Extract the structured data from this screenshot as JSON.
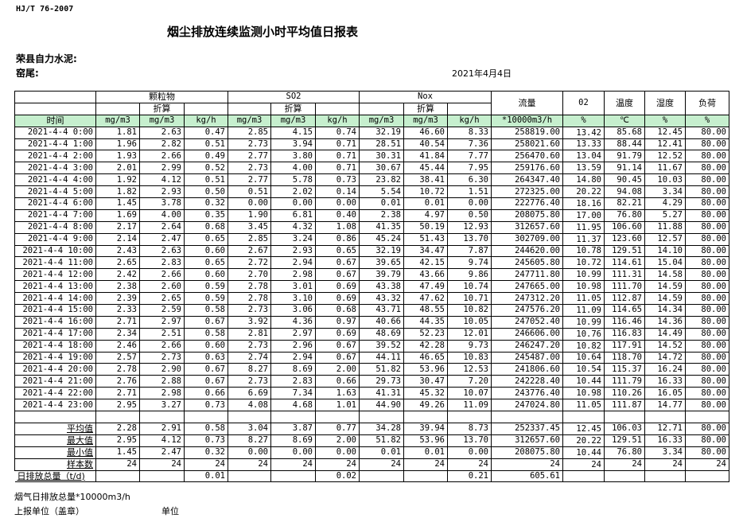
{
  "header": {
    "standard": "HJ/T 76-2007",
    "title": "烟尘排放连续监测小时平均值日报表",
    "company": "荣县自力水泥:",
    "kiln": "窑尾:",
    "date": "2021年4月4日"
  },
  "table": {
    "groups": {
      "particulate": "颗粒物",
      "so2": "SO2",
      "nox": "Nox",
      "flow": "流量",
      "o2": "02",
      "temp": "温度",
      "humidity": "湿度",
      "load": "负荷"
    },
    "converted": "折算",
    "time_header": "时间",
    "units": [
      "mg/m3",
      "mg/m3",
      "kg/h",
      "mg/m3",
      "mg/m3",
      "kg/h",
      "mg/m3",
      "mg/m3",
      "kg/h",
      "*10000m3/h",
      "%",
      "℃",
      "%",
      "%"
    ],
    "rows": [
      [
        "2021-4-4 0:00",
        "1.81",
        "2.63",
        "0.47",
        "2.85",
        "4.15",
        "0.74",
        "32.19",
        "46.60",
        "8.33",
        "258819.00",
        "13.42",
        "85.68",
        "12.45",
        "80.00"
      ],
      [
        "2021-4-4 1:00",
        "1.96",
        "2.82",
        "0.51",
        "2.73",
        "3.94",
        "0.71",
        "28.51",
        "40.54",
        "7.36",
        "258021.60",
        "13.33",
        "88.44",
        "12.41",
        "80.00"
      ],
      [
        "2021-4-4 2:00",
        "1.93",
        "2.66",
        "0.49",
        "2.77",
        "3.80",
        "0.71",
        "30.31",
        "41.84",
        "7.77",
        "256470.60",
        "13.04",
        "91.79",
        "12.52",
        "80.00"
      ],
      [
        "2021-4-4 3:00",
        "2.01",
        "2.99",
        "0.52",
        "2.73",
        "4.00",
        "0.71",
        "30.67",
        "45.44",
        "7.95",
        "259176.60",
        "13.59",
        "91.14",
        "11.67",
        "80.00"
      ],
      [
        "2021-4-4 4:00",
        "1.92",
        "4.12",
        "0.51",
        "2.77",
        "5.78",
        "0.73",
        "23.82",
        "38.41",
        "6.30",
        "264347.40",
        "14.80",
        "90.45",
        "10.03",
        "80.00"
      ],
      [
        "2021-4-4 5:00",
        "1.82",
        "2.93",
        "0.50",
        "0.51",
        "2.02",
        "0.14",
        "5.54",
        "10.72",
        "1.51",
        "272325.00",
        "20.22",
        "94.08",
        "3.34",
        "80.00"
      ],
      [
        "2021-4-4 6:00",
        "1.45",
        "3.78",
        "0.32",
        "0.00",
        "0.00",
        "0.00",
        "0.01",
        "0.01",
        "0.00",
        "222776.40",
        "18.16",
        "82.21",
        "4.29",
        "80.00"
      ],
      [
        "2021-4-4 7:00",
        "1.69",
        "4.00",
        "0.35",
        "1.90",
        "6.81",
        "0.40",
        "2.38",
        "4.97",
        "0.50",
        "208075.80",
        "17.00",
        "76.80",
        "5.27",
        "80.00"
      ],
      [
        "2021-4-4 8:00",
        "2.17",
        "2.64",
        "0.68",
        "3.45",
        "4.32",
        "1.08",
        "41.35",
        "50.19",
        "12.93",
        "312657.60",
        "11.95",
        "106.60",
        "11.88",
        "80.00"
      ],
      [
        "2021-4-4 9:00",
        "2.14",
        "2.47",
        "0.65",
        "2.85",
        "3.24",
        "0.86",
        "45.24",
        "51.43",
        "13.70",
        "302709.00",
        "11.37",
        "123.60",
        "12.57",
        "80.00"
      ],
      [
        "2021-4-4 10:00",
        "2.43",
        "2.63",
        "0.60",
        "2.67",
        "2.93",
        "0.65",
        "32.19",
        "34.47",
        "7.87",
        "244620.00",
        "10.78",
        "129.51",
        "14.10",
        "80.00"
      ],
      [
        "2021-4-4 11:00",
        "2.65",
        "2.83",
        "0.65",
        "2.72",
        "2.94",
        "0.67",
        "39.65",
        "42.15",
        "9.74",
        "245605.80",
        "10.72",
        "114.61",
        "15.04",
        "80.00"
      ],
      [
        "2021-4-4 12:00",
        "2.42",
        "2.66",
        "0.60",
        "2.70",
        "2.98",
        "0.67",
        "39.79",
        "43.66",
        "9.86",
        "247711.80",
        "10.99",
        "111.31",
        "14.58",
        "80.00"
      ],
      [
        "2021-4-4 13:00",
        "2.38",
        "2.60",
        "0.59",
        "2.78",
        "3.01",
        "0.69",
        "43.38",
        "47.49",
        "10.74",
        "247665.00",
        "10.98",
        "111.70",
        "14.59",
        "80.00"
      ],
      [
        "2021-4-4 14:00",
        "2.39",
        "2.65",
        "0.59",
        "2.78",
        "3.10",
        "0.69",
        "43.32",
        "47.62",
        "10.71",
        "247312.20",
        "11.05",
        "112.87",
        "14.59",
        "80.00"
      ],
      [
        "2021-4-4 15:00",
        "2.33",
        "2.59",
        "0.58",
        "2.73",
        "3.06",
        "0.68",
        "43.71",
        "48.55",
        "10.82",
        "247576.20",
        "11.09",
        "114.65",
        "14.34",
        "80.00"
      ],
      [
        "2021-4-4 16:00",
        "2.71",
        "2.97",
        "0.67",
        "3.92",
        "4.36",
        "0.97",
        "40.66",
        "44.35",
        "10.05",
        "247052.40",
        "10.99",
        "116.46",
        "14.36",
        "80.00"
      ],
      [
        "2021-4-4 17:00",
        "2.34",
        "2.51",
        "0.58",
        "2.81",
        "2.97",
        "0.69",
        "48.69",
        "52.23",
        "12.01",
        "246606.00",
        "10.76",
        "116.83",
        "14.49",
        "80.00"
      ],
      [
        "2021-4-4 18:00",
        "2.46",
        "2.66",
        "0.60",
        "2.73",
        "2.96",
        "0.67",
        "39.52",
        "42.28",
        "9.73",
        "246247.20",
        "10.82",
        "117.91",
        "14.52",
        "80.00"
      ],
      [
        "2021-4-4 19:00",
        "2.57",
        "2.73",
        "0.63",
        "2.74",
        "2.94",
        "0.67",
        "44.11",
        "46.65",
        "10.83",
        "245487.00",
        "10.64",
        "118.70",
        "14.72",
        "80.00"
      ],
      [
        "2021-4-4 20:00",
        "2.78",
        "2.90",
        "0.67",
        "8.27",
        "8.69",
        "2.00",
        "51.82",
        "53.96",
        "12.53",
        "241806.60",
        "10.54",
        "115.37",
        "16.24",
        "80.00"
      ],
      [
        "2021-4-4 21:00",
        "2.76",
        "2.88",
        "0.67",
        "2.73",
        "2.83",
        "0.66",
        "29.73",
        "30.47",
        "7.20",
        "242228.40",
        "10.44",
        "111.79",
        "16.33",
        "80.00"
      ],
      [
        "2021-4-4 22:00",
        "2.71",
        "2.98",
        "0.66",
        "6.69",
        "7.34",
        "1.63",
        "41.31",
        "45.32",
        "10.07",
        "243776.40",
        "10.98",
        "110.26",
        "16.05",
        "80.00"
      ],
      [
        "2021-4-4 23:00",
        "2.95",
        "3.27",
        "0.73",
        "4.08",
        "4.68",
        "1.01",
        "44.90",
        "49.26",
        "11.09",
        "247024.80",
        "11.05",
        "111.87",
        "14.77",
        "80.00"
      ]
    ],
    "summary": [
      [
        "平均值",
        "2.28",
        "2.91",
        "0.58",
        "3.04",
        "3.87",
        "0.77",
        "34.28",
        "39.94",
        "8.73",
        "252337.45",
        "12.45",
        "106.03",
        "12.71",
        "80.00"
      ],
      [
        "最大值",
        "2.95",
        "4.12",
        "0.73",
        "8.27",
        "8.69",
        "2.00",
        "51.82",
        "53.96",
        "13.70",
        "312657.60",
        "20.22",
        "129.51",
        "16.33",
        "80.00"
      ],
      [
        "最小值",
        "1.45",
        "2.47",
        "0.32",
        "0.00",
        "0.00",
        "0.00",
        "0.01",
        "0.01",
        "0.00",
        "208075.80",
        "10.44",
        "76.80",
        "3.34",
        "80.00"
      ],
      [
        "样本数",
        "24",
        "24",
        "24",
        "24",
        "24",
        "24",
        "24",
        "24",
        "24",
        "24",
        "24",
        "24",
        "24",
        "24"
      ]
    ],
    "daily_total": [
      "日排放总量（t/d)",
      "",
      "",
      "0.01",
      "",
      "",
      "0.02",
      "",
      "",
      "0.21",
      "605.61",
      "",
      "",
      "",
      ""
    ]
  },
  "footer": {
    "flue_gas_total": "烟气日排放总量*10000m3/h",
    "reporting_unit": "上报单位（盖章）",
    "unit": "单位"
  }
}
